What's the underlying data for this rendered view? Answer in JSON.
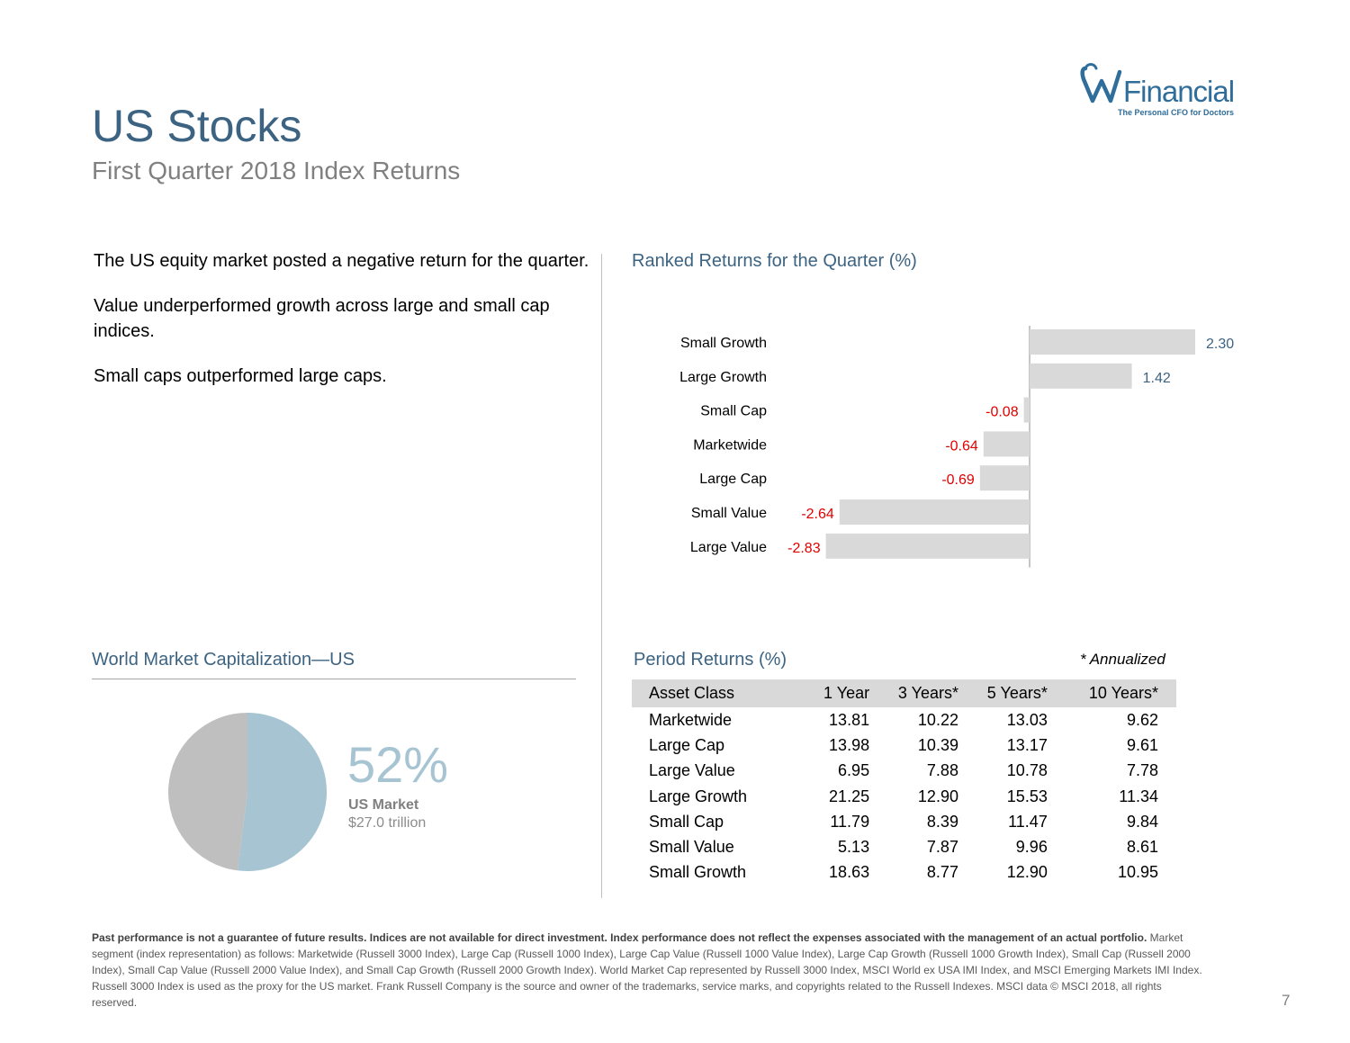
{
  "header": {
    "title": "US Stocks",
    "subtitle": "First Quarter 2018 Index Returns"
  },
  "logo": {
    "name": "Financial",
    "tagline": "The Personal CFO for Doctors"
  },
  "bullets": [
    "The US equity market posted a negative return for the quarter.",
    "Value underperformed growth across large and small cap indices.",
    "Small caps outperformed large caps."
  ],
  "chart_data": [
    {
      "type": "bar",
      "orientation": "horizontal",
      "title": "Ranked Returns for the Quarter (%)",
      "categories": [
        "Small Growth",
        "Large Growth",
        "Small Cap",
        "Marketwide",
        "Large Cap",
        "Small Value",
        "Large Value"
      ],
      "values": [
        2.3,
        1.42,
        -0.08,
        -0.64,
        -0.69,
        -2.64,
        -2.83
      ],
      "value_labels": [
        "2.30",
        "1.42",
        "-0.08",
        "-0.64",
        "-0.69",
        "-2.64",
        "-2.83"
      ],
      "xlim": [
        -2.83,
        2.3
      ],
      "grid": false,
      "colors": {
        "bar": "#d9d9d9",
        "positive_label": "#3c6382",
        "negative_label": "#e00000",
        "axis": "#8c8c8c"
      }
    },
    {
      "type": "pie",
      "title": "World Market Capitalization—US",
      "slices": [
        {
          "label": "US Market",
          "value": 52,
          "color": "#a6c4d1"
        },
        {
          "label": "",
          "value": 48,
          "color": "#bfbfbf"
        }
      ],
      "highlight": {
        "percent": "52%",
        "label": "US Market",
        "value": "$27.0 trillion"
      }
    },
    {
      "type": "table",
      "title": "Period Returns (%)",
      "note": "* Annualized",
      "columns": [
        "Asset Class",
        "1 Year",
        "3 Years*",
        "5 Years*",
        "10 Years*"
      ],
      "rows": [
        [
          "Marketwide",
          "13.81",
          "10.22",
          "13.03",
          "9.62"
        ],
        [
          "Large Cap",
          "13.98",
          "10.39",
          "13.17",
          "9.61"
        ],
        [
          "Large Value",
          "6.95",
          "7.88",
          "10.78",
          "7.78"
        ],
        [
          "Large Growth",
          "21.25",
          "12.90",
          "15.53",
          "11.34"
        ],
        [
          "Small Cap",
          "11.79",
          "8.39",
          "11.47",
          "9.84"
        ],
        [
          "Small Value",
          "5.13",
          "7.87",
          "9.96",
          "8.61"
        ],
        [
          "Small Growth",
          "18.63",
          "8.77",
          "12.90",
          "10.95"
        ]
      ]
    }
  ],
  "disclaimer": {
    "bold": "Past performance is not a guarantee of future results. Indices are not available for direct investment. Index performance does not reflect the expenses associated with the management of an actual portfolio.",
    "text": "Market segment (index representation) as follows: Marketwide (Russell 3000 Index), Large Cap (Russell 1000 Index), Large Cap Value (Russell 1000 Value Index), Large Cap Growth (Russell 1000 Growth Index), Small Cap (Russell 2000 Index), Small Cap Value (Russell 2000 Value Index), and Small Cap Growth (Russell 2000 Growth Index). World Market Cap represented by Russell 3000 Index, MSCI World ex USA IMI Index, and MSCI Emerging Markets IMI Index. Russell 3000 Index is used as the proxy for the US market. Frank Russell Company is the source and owner of the trademarks, service marks, and copyrights related to the Russell Indexes. MSCI data © MSCI 2018, all rights reserved."
  },
  "page_number": "7"
}
